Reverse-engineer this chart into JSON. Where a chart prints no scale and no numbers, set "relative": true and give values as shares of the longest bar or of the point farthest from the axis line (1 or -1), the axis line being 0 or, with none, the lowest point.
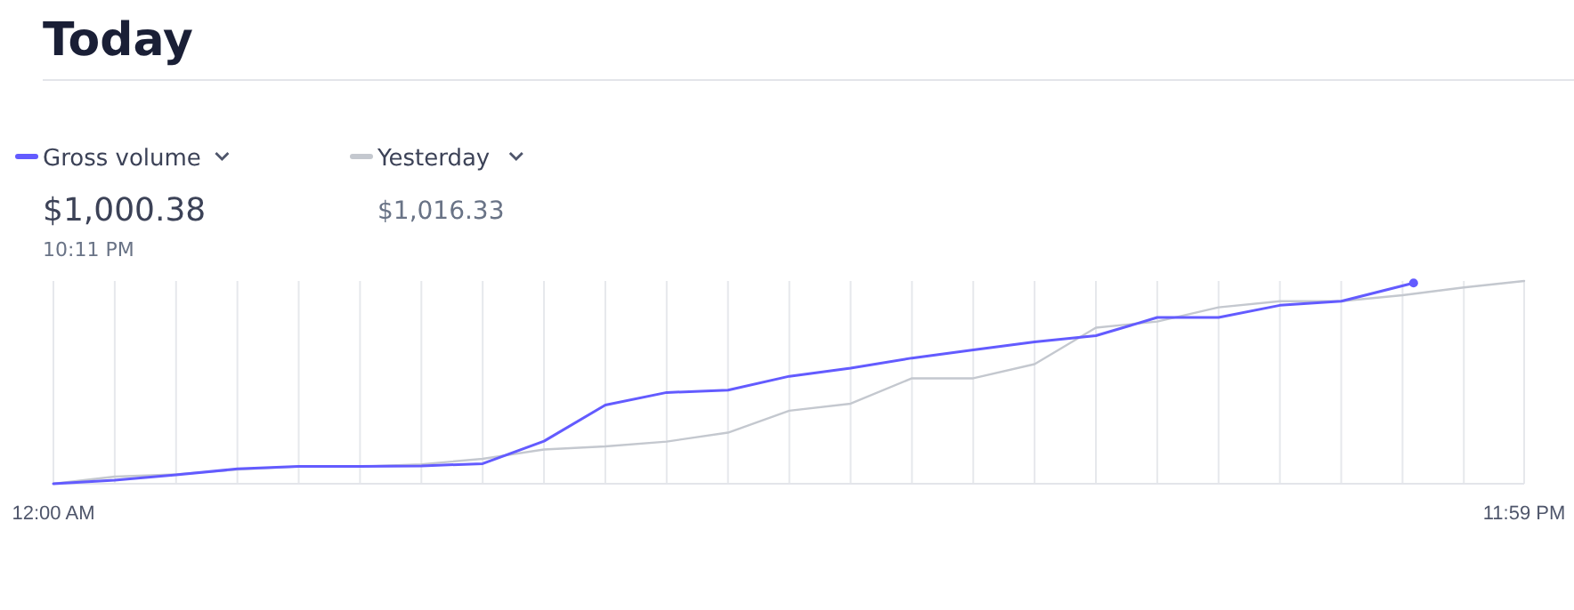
{
  "chart_data": {
    "type": "line",
    "title": "Today",
    "relative": true,
    "legend": "top left",
    "grid": "x",
    "line_style": "solid",
    "annotations": [
      "$1,000.38",
      "$1,016.33",
      "10:11 PM"
    ],
    "xlim": [
      0,
      23.983
    ],
    "xticks": [
      {
        "value": 0,
        "label": "12:00 AM"
      },
      {
        "value": 1,
        "label": null
      },
      {
        "value": 2,
        "label": null
      },
      {
        "value": 3,
        "label": null
      },
      {
        "value": 4,
        "label": null
      },
      {
        "value": 5,
        "label": null
      },
      {
        "value": 6,
        "label": null
      },
      {
        "value": 7,
        "label": null
      },
      {
        "value": 8,
        "label": null
      },
      {
        "value": 9,
        "label": null
      },
      {
        "value": 10,
        "label": null
      },
      {
        "value": 11,
        "label": null
      },
      {
        "value": 12,
        "label": null
      },
      {
        "value": 13,
        "label": null
      },
      {
        "value": 14,
        "label": null
      },
      {
        "value": 15,
        "label": null
      },
      {
        "value": 16,
        "label": null
      },
      {
        "value": 17,
        "label": null
      },
      {
        "value": 18,
        "label": null
      },
      {
        "value": 19,
        "label": null
      },
      {
        "value": 20,
        "label": null
      },
      {
        "value": 21,
        "label": null
      },
      {
        "value": 22,
        "label": null
      },
      {
        "value": 23,
        "label": null
      },
      {
        "value": 23.983,
        "label": "11:59 PM"
      }
    ],
    "series": [
      {
        "name": "Gross volume",
        "color": "#635bff",
        "x": [
          0,
          1,
          2,
          3,
          4,
          5,
          6,
          7,
          8,
          9,
          10,
          11,
          12,
          13,
          14,
          15,
          16,
          17,
          18,
          19,
          20,
          21,
          22.18
        ],
        "values": [
          0,
          0.018,
          0.044,
          0.073,
          0.085,
          0.085,
          0.088,
          0.099,
          0.21,
          0.388,
          0.45,
          0.462,
          0.53,
          0.57,
          0.62,
          0.66,
          0.7,
          0.73,
          0.82,
          0.82,
          0.88,
          0.9,
          0.99
        ]
      },
      {
        "name": "Yesterday",
        "color": "#c4c8cf",
        "x": [
          0,
          1,
          2,
          3,
          4,
          5,
          6,
          7,
          8,
          9,
          10,
          11,
          12,
          13,
          14,
          15,
          16,
          17,
          18,
          19,
          20,
          21,
          22,
          23,
          23.983
        ],
        "values": [
          0,
          0.035,
          0.046,
          0.07,
          0.085,
          0.085,
          0.096,
          0.123,
          0.169,
          0.184,
          0.208,
          0.252,
          0.36,
          0.395,
          0.52,
          0.52,
          0.59,
          0.77,
          0.8,
          0.87,
          0.9,
          0.9,
          0.93,
          0.968,
          1
        ]
      }
    ]
  }
}
